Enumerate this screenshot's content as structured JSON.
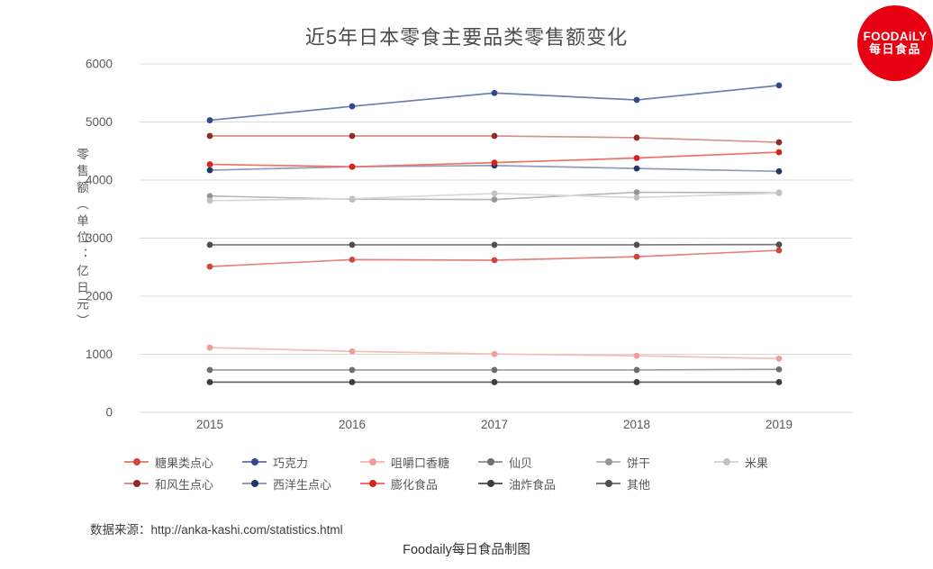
{
  "title": "近5年日本零食主要品类零售额变化",
  "logo": {
    "line1": "FOODAiLY",
    "line2": "每日食品",
    "color": "#e60012"
  },
  "source": {
    "label": "数据来源：",
    "url": "http://anka-kashi.com/statistics.html"
  },
  "footer": "Foodaily每日食品制图",
  "colors": {
    "grid": "#d9d9d9",
    "axis_text": "#595959",
    "title_text": "#4c4c4c"
  },
  "chart_data": {
    "type": "line",
    "title": "近5年日本零食主要品类零售额变化",
    "ylabel": "零售额（单位：亿日元）",
    "xlabel": "",
    "categories": [
      "2015",
      "2016",
      "2017",
      "2018",
      "2019"
    ],
    "ylim": [
      0,
      6000
    ],
    "ytick_step": 1000,
    "grid": true,
    "legend_position": "bottom",
    "series": [
      {
        "name": "糖果类点心",
        "values": [
          2510,
          2630,
          2620,
          2680,
          2790
        ],
        "line_color": "#e2837c",
        "dot_color": "#cc4740"
      },
      {
        "name": "巧克力",
        "values": [
          5030,
          5270,
          5500,
          5380,
          5630
        ],
        "line_color": "#7080ab",
        "dot_color": "#30498d"
      },
      {
        "name": "咀嚼口香糖",
        "values": [
          1115,
          1050,
          1005,
          975,
          925
        ],
        "line_color": "#f6bcb8",
        "dot_color": "#f09d99"
      },
      {
        "name": "仙贝",
        "values": [
          730,
          730,
          730,
          730,
          740
        ],
        "line_color": "#9c9c9c",
        "dot_color": "#6e6e6e"
      },
      {
        "name": "饼干",
        "values": [
          3725,
          3670,
          3665,
          3790,
          3780
        ],
        "line_color": "#b9b9b9",
        "dot_color": "#969696"
      },
      {
        "name": "米果",
        "values": [
          3645,
          3680,
          3770,
          3700,
          3775
        ],
        "line_color": "#d8d8d8",
        "dot_color": "#c2c2c2"
      },
      {
        "name": "和风生点心",
        "values": [
          4760,
          4760,
          4760,
          4730,
          4650
        ],
        "line_color": "#d8908a",
        "dot_color": "#8e2b24"
      },
      {
        "name": "西洋生点心",
        "values": [
          4170,
          4230,
          4250,
          4200,
          4150
        ],
        "line_color": "#929cb8",
        "dot_color": "#1f3864"
      },
      {
        "name": "膨化食品",
        "values": [
          4270,
          4230,
          4300,
          4380,
          4480
        ],
        "line_color": "#ef7168",
        "dot_color": "#d5261d"
      },
      {
        "name": "油炸食品",
        "values": [
          520,
          520,
          520,
          520,
          520
        ],
        "line_color": "#606060",
        "dot_color": "#3d3d3d"
      },
      {
        "name": "其他",
        "values": [
          2885,
          2885,
          2885,
          2885,
          2890
        ],
        "line_color": "#787878",
        "dot_color": "#4f4f4f"
      }
    ]
  }
}
